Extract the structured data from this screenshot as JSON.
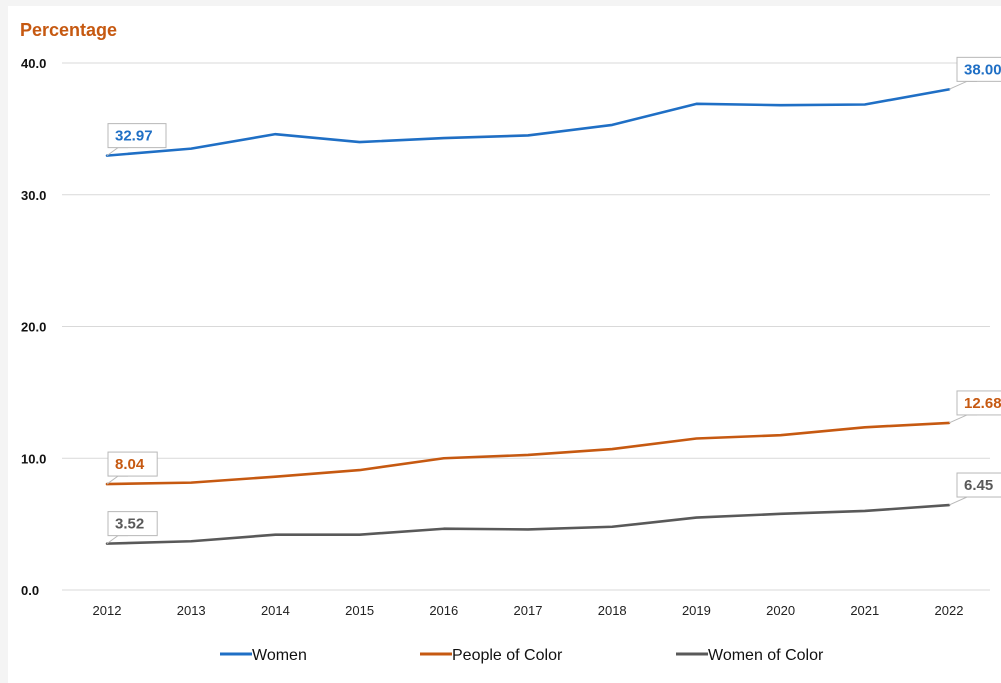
{
  "chart_data": {
    "type": "line",
    "title": "",
    "ylabel": "Percentage",
    "xlabel": "",
    "ylim": [
      0,
      40
    ],
    "yticks": [
      "0.0",
      "10.0",
      "20.0",
      "30.0",
      "40.0"
    ],
    "ytick_values": [
      0,
      10,
      20,
      30,
      40
    ],
    "categories": [
      "2012",
      "2013",
      "2014",
      "2015",
      "2016",
      "2017",
      "2018",
      "2019",
      "2020",
      "2021",
      "2022"
    ],
    "grid": true,
    "legend_position": "bottom",
    "title_color": "#c65911",
    "series": [
      {
        "name": "Women",
        "color": "#1f6fc5",
        "values": [
          32.97,
          33.5,
          34.6,
          34.0,
          34.3,
          34.5,
          35.3,
          36.9,
          36.8,
          36.85,
          38.0
        ],
        "start_label": "32.97",
        "end_label": "38.00"
      },
      {
        "name": "People of Color",
        "color": "#c65911",
        "values": [
          8.04,
          8.15,
          8.6,
          9.1,
          10.0,
          10.25,
          10.7,
          11.5,
          11.75,
          12.35,
          12.68
        ],
        "start_label": "8.04",
        "end_label": "12.68"
      },
      {
        "name": "Women of Color",
        "color": "#595959",
        "values": [
          3.52,
          3.7,
          4.2,
          4.2,
          4.65,
          4.6,
          4.8,
          5.5,
          5.78,
          6.0,
          6.45
        ],
        "start_label": "3.52",
        "end_label": "6.45"
      }
    ]
  }
}
